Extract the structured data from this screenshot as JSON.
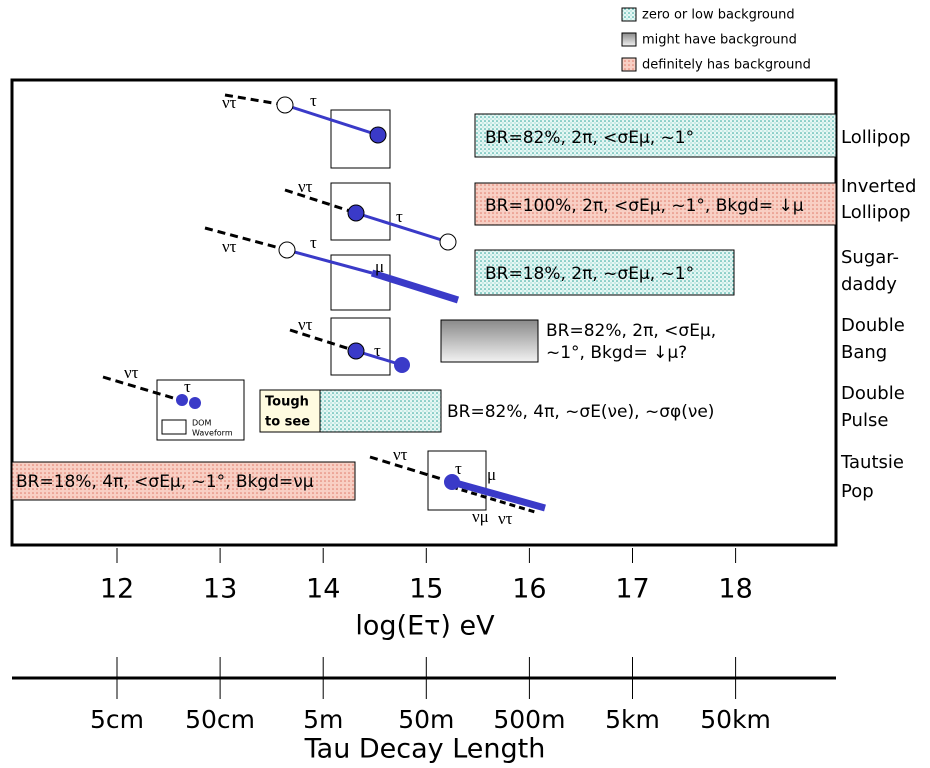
{
  "legend": [
    "zero or low background",
    "might have background",
    "definitely has background"
  ],
  "event_names": [
    [
      "Lollipop"
    ],
    [
      "Inverted",
      "Lollipop"
    ],
    [
      "Sugar-",
      "daddy"
    ],
    [
      "Double",
      "Bang"
    ],
    [
      "Double",
      "Pulse"
    ],
    [
      "Tautsie",
      "Pop"
    ]
  ],
  "bar_labels": [
    [
      "BR=82%, 2π, <σEμ, ~1°"
    ],
    [
      "BR=100%, 2π, <σEμ, ~1°, Bkgd= ↓μ"
    ],
    [
      "BR=18%, 2π, ~σEμ, ~1°"
    ],
    [
      "BR=82%, 2π, <σEμ,",
      "~1°, Bkgd= ↓μ?"
    ],
    [
      "BR=82%, 4π, ~σE(νe), ~σφ(νe)"
    ],
    [
      "BR=18%, 4π, <σEμ, ~1°, Bkgd=νμ"
    ]
  ],
  "symbols": {
    "nu_tau": "ντ",
    "tau": "τ",
    "mu": "μ",
    "nu_mu": "νμ"
  },
  "tough": [
    "Tough",
    "to see"
  ],
  "dom": [
    "DOM",
    "Waveform"
  ],
  "energy_axis": {
    "ticks": [
      "12",
      "13",
      "14",
      "15",
      "16",
      "17",
      "18"
    ],
    "label": "log(Eτ) eV"
  },
  "length_axis": {
    "ticks": [
      "5cm",
      "50cm",
      "5m",
      "50m",
      "500m",
      "5km",
      "50km"
    ],
    "label": "Tau Decay Length"
  }
}
